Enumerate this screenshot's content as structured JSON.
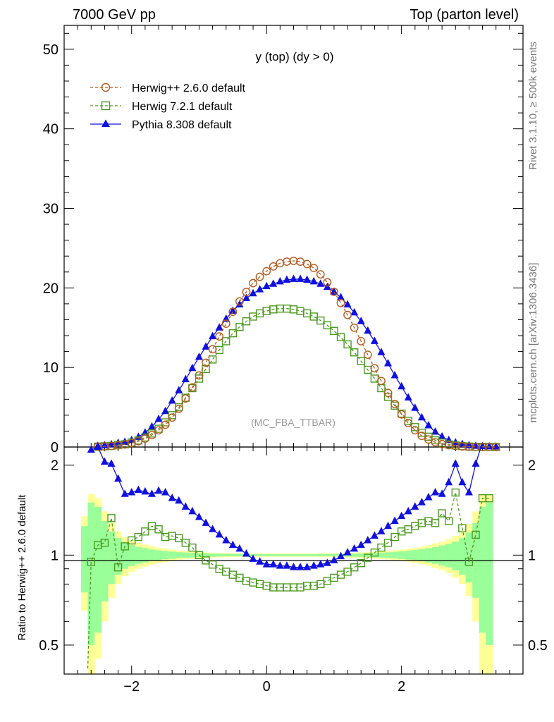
{
  "header": {
    "left": "7000 GeV pp",
    "right": "Top (parton level)"
  },
  "side_labels": {
    "rivet": "Rivet 3.1.10, ≥ 500k events",
    "source": "mcplots.cern.ch [arXiv:1306.3436]"
  },
  "colors": {
    "herwigpp": "#b35a1f",
    "herwig7": "#4a9a1f",
    "pythia": "#1010e0",
    "band_yellow": "#ffff99",
    "band_green": "#99ff99"
  },
  "chart_data": [
    {
      "type": "line",
      "title": "y (top) (dy > 0)",
      "annotation": "(MC_FBA_TTBAR)",
      "xlim": [
        -3.0,
        3.8
      ],
      "ylim": [
        0,
        53
      ],
      "xticks": [
        "−2",
        "0",
        "2"
      ],
      "yticks": [
        "0",
        "10",
        "20",
        "30",
        "40",
        "50"
      ],
      "legend_position": "top-left",
      "x": [
        -2.5,
        -2.4,
        -2.3,
        -2.2,
        -2.1,
        -2.0,
        -1.9,
        -1.8,
        -1.7,
        -1.6,
        -1.5,
        -1.4,
        -1.3,
        -1.2,
        -1.1,
        -1.0,
        -0.9,
        -0.8,
        -0.7,
        -0.6,
        -0.5,
        -0.4,
        -0.3,
        -0.2,
        -0.1,
        0.0,
        0.1,
        0.2,
        0.3,
        0.4,
        0.5,
        0.6,
        0.7,
        0.8,
        0.9,
        1.0,
        1.1,
        1.2,
        1.3,
        1.4,
        1.5,
        1.6,
        1.7,
        1.8,
        1.9,
        2.0,
        2.1,
        2.2,
        2.3,
        2.4,
        2.5,
        2.6,
        2.7,
        2.8,
        2.9,
        3.0,
        3.1,
        3.2,
        3.3,
        3.4
      ],
      "series": [
        {
          "name": "Herwig++ 2.6.0 default",
          "style": "dashed-open-circle",
          "values": [
            0.05,
            0.08,
            0.13,
            0.2,
            0.32,
            0.49,
            0.73,
            1.06,
            1.5,
            2.1,
            2.8,
            3.7,
            4.8,
            6.1,
            7.5,
            9.0,
            10.6,
            12.3,
            13.9,
            15.5,
            17.0,
            18.3,
            19.5,
            20.6,
            21.4,
            22.1,
            22.7,
            23.1,
            23.3,
            23.4,
            23.3,
            23.0,
            22.5,
            21.7,
            20.7,
            19.5,
            18.1,
            16.6,
            15.0,
            13.3,
            11.6,
            9.9,
            8.3,
            6.8,
            5.4,
            4.1,
            3.0,
            2.1,
            1.4,
            0.95,
            0.6,
            0.37,
            0.22,
            0.13,
            0.07,
            0.04,
            0.02,
            0.01,
            0.0,
            0.0
          ]
        },
        {
          "name": "Herwig 7.2.1 default",
          "style": "dashed-open-square",
          "values": [
            0.05,
            0.09,
            0.14,
            0.26,
            0.35,
            0.56,
            0.82,
            1.2,
            1.7,
            2.3,
            3.1,
            4.0,
            5.0,
            6.2,
            7.4,
            8.6,
            9.8,
            11.0,
            12.2,
            13.3,
            14.3,
            15.1,
            15.8,
            16.4,
            16.8,
            17.1,
            17.3,
            17.4,
            17.4,
            17.3,
            17.1,
            16.8,
            16.4,
            15.9,
            15.3,
            14.6,
            13.8,
            12.9,
            11.9,
            10.8,
            9.7,
            8.6,
            7.4,
            6.3,
            5.2,
            4.2,
            3.3,
            2.5,
            1.8,
            1.3,
            0.85,
            0.55,
            0.33,
            0.2,
            0.11,
            0.06,
            0.03,
            0.02,
            0.01,
            0.0
          ]
        },
        {
          "name": "Pythia 8.308 default",
          "style": "solid-filled-triangle",
          "values": [
            0.12,
            0.2,
            0.32,
            0.5,
            0.62,
            0.85,
            1.25,
            1.8,
            2.55,
            3.5,
            4.5,
            5.8,
            7.1,
            8.5,
            9.9,
            11.3,
            12.6,
            13.9,
            15.0,
            16.1,
            17.1,
            17.9,
            18.7,
            19.3,
            19.8,
            20.2,
            20.5,
            20.8,
            21.0,
            21.1,
            21.1,
            21.0,
            20.8,
            20.5,
            20.1,
            19.5,
            18.8,
            17.9,
            16.9,
            15.8,
            14.6,
            13.3,
            11.9,
            10.5,
            9.0,
            7.6,
            6.2,
            4.9,
            3.7,
            2.7,
            1.9,
            1.3,
            0.85,
            0.55,
            0.35,
            0.2,
            0.12,
            0.08,
            0.05,
            0.03
          ]
        }
      ]
    },
    {
      "type": "line",
      "ylabel": "Ratio to Herwig++ 2.6.0 default",
      "yscale": "log",
      "ylim": [
        0.4,
        2.3
      ],
      "yticks": [
        "0.5",
        "1",
        "2"
      ],
      "xticks": [
        "−2",
        "0",
        "2"
      ],
      "reference_line": 1,
      "band_x": [
        -2.7,
        -2.6,
        -2.5,
        -2.4,
        -2.3,
        -2.2,
        -2.1,
        -2.0,
        -1.9,
        -1.8,
        -1.7,
        -1.6,
        -1.5,
        -1.4,
        -1.3,
        -1.2,
        -1.1,
        -1.0,
        -0.9,
        -0.8,
        -0.7,
        -0.6,
        -0.5,
        -0.4,
        -0.3,
        -0.2,
        -0.1,
        0.0,
        0.1,
        0.2,
        0.3,
        0.4,
        0.5,
        0.6,
        0.7,
        0.8,
        0.9,
        1.0,
        1.1,
        1.2,
        1.3,
        1.4,
        1.5,
        1.6,
        1.7,
        1.8,
        1.9,
        2.0,
        2.1,
        2.2,
        2.3,
        2.4,
        2.5,
        2.6,
        2.7,
        2.8,
        2.9,
        3.0,
        3.1,
        3.2,
        3.3
      ],
      "band_yellow_rel": [
        0.35,
        0.6,
        0.55,
        0.4,
        0.28,
        0.2,
        0.15,
        0.12,
        0.1,
        0.085,
        0.07,
        0.06,
        0.05,
        0.042,
        0.036,
        0.031,
        0.027,
        0.024,
        0.021,
        0.019,
        0.017,
        0.016,
        0.015,
        0.014,
        0.014,
        0.013,
        0.013,
        0.013,
        0.013,
        0.013,
        0.013,
        0.013,
        0.013,
        0.013,
        0.013,
        0.014,
        0.014,
        0.015,
        0.016,
        0.017,
        0.019,
        0.021,
        0.023,
        0.026,
        0.029,
        0.033,
        0.038,
        0.044,
        0.05,
        0.058,
        0.068,
        0.08,
        0.095,
        0.11,
        0.13,
        0.16,
        0.2,
        0.27,
        0.4,
        0.6,
        0.6
      ],
      "band_green_rel": [
        0.25,
        0.5,
        0.45,
        0.3,
        0.2,
        0.14,
        0.1,
        0.08,
        0.065,
        0.055,
        0.045,
        0.038,
        0.032,
        0.027,
        0.023,
        0.02,
        0.017,
        0.015,
        0.013,
        0.012,
        0.011,
        0.01,
        0.009,
        0.009,
        0.008,
        0.008,
        0.008,
        0.008,
        0.008,
        0.008,
        0.008,
        0.008,
        0.008,
        0.008,
        0.008,
        0.009,
        0.009,
        0.009,
        0.01,
        0.011,
        0.012,
        0.013,
        0.015,
        0.017,
        0.019,
        0.022,
        0.025,
        0.029,
        0.034,
        0.04,
        0.047,
        0.055,
        0.065,
        0.077,
        0.09,
        0.11,
        0.14,
        0.19,
        0.28,
        0.45,
        0.5
      ],
      "series": [
        {
          "name": "Herwig 7.2.1 default",
          "x": [
            -2.6,
            -2.5,
            -2.4,
            -2.3,
            -2.2,
            -2.1,
            -2.0,
            -1.9,
            -1.8,
            -1.7,
            -1.6,
            -1.5,
            -1.4,
            -1.3,
            -1.2,
            -1.1,
            -1.0,
            -0.9,
            -0.8,
            -0.7,
            -0.6,
            -0.5,
            -0.4,
            -0.3,
            -0.2,
            -0.1,
            0.0,
            0.1,
            0.2,
            0.3,
            0.4,
            0.5,
            0.6,
            0.7,
            0.8,
            0.9,
            1.0,
            1.1,
            1.2,
            1.3,
            1.4,
            1.5,
            1.6,
            1.7,
            1.8,
            1.9,
            2.0,
            2.1,
            2.2,
            2.3,
            2.4,
            2.5,
            2.6,
            2.7,
            2.8,
            2.9,
            3.0,
            3.1,
            3.2,
            3.3
          ],
          "values": [
            0.95,
            1.08,
            1.1,
            1.33,
            0.91,
            1.07,
            1.12,
            1.15,
            1.2,
            1.25,
            1.22,
            1.15,
            1.16,
            1.14,
            1.1,
            1.06,
            1.0,
            0.96,
            0.93,
            0.9,
            0.88,
            0.86,
            0.84,
            0.82,
            0.81,
            0.8,
            0.79,
            0.78,
            0.78,
            0.78,
            0.78,
            0.78,
            0.79,
            0.79,
            0.8,
            0.82,
            0.84,
            0.86,
            0.88,
            0.91,
            0.94,
            0.98,
            1.02,
            1.06,
            1.1,
            1.15,
            1.2,
            1.22,
            1.25,
            1.28,
            1.3,
            1.28,
            1.38,
            1.3,
            1.62,
            1.23,
            0.95,
            1.17,
            1.55,
            1.55
          ]
        },
        {
          "name": "Pythia 8.308 default",
          "x": [
            -2.6,
            -2.5,
            -2.4,
            -2.3,
            -2.2,
            -2.1,
            -2.0,
            -1.9,
            -1.8,
            -1.7,
            -1.6,
            -1.5,
            -1.4,
            -1.3,
            -1.2,
            -1.1,
            -1.0,
            -0.9,
            -0.8,
            -0.7,
            -0.6,
            -0.5,
            -0.4,
            -0.3,
            -0.2,
            -0.1,
            0.0,
            0.1,
            0.2,
            0.3,
            0.4,
            0.5,
            0.6,
            0.7,
            0.8,
            0.9,
            1.0,
            1.1,
            1.2,
            1.3,
            1.4,
            1.5,
            1.6,
            1.7,
            1.8,
            1.9,
            2.0,
            2.1,
            2.2,
            2.3,
            2.4,
            2.5,
            2.6,
            2.7,
            2.8,
            2.9,
            3.0,
            3.1
          ],
          "values": [
            2.25,
            2.3,
            2.05,
            2.02,
            1.8,
            1.6,
            1.62,
            1.65,
            1.63,
            1.6,
            1.64,
            1.62,
            1.55,
            1.52,
            1.45,
            1.4,
            1.34,
            1.28,
            1.22,
            1.17,
            1.12,
            1.08,
            1.05,
            1.01,
            0.97,
            0.95,
            0.93,
            0.93,
            0.92,
            0.92,
            0.91,
            0.91,
            0.91,
            0.92,
            0.93,
            0.94,
            0.96,
            0.99,
            1.02,
            1.05,
            1.08,
            1.12,
            1.16,
            1.2,
            1.25,
            1.3,
            1.35,
            1.4,
            1.45,
            1.5,
            1.56,
            1.62,
            1.6,
            1.75,
            2.02,
            1.75,
            1.62,
            2.02
          ]
        }
      ]
    }
  ]
}
